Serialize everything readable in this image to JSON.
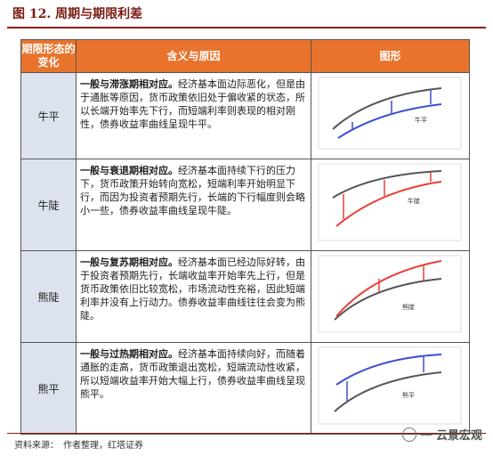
{
  "figure": {
    "title": "图 12. 周期与期限利差"
  },
  "table": {
    "headers": [
      "期限形态的变化",
      "含义与原因",
      "图形"
    ],
    "rows": [
      {
        "type": "牛平",
        "lead": "一般与滞涨期相对应。",
        "text": "经济基本面边际恶化，但是由于通胀等原因，货币政策依旧处于偏收紧的状态，所以长端开始率先下行，而短端利率则表现的相对刚性，债券收益率曲线呈现牛平。",
        "chart_label": "牛平",
        "accent_color": "#3a4fd1"
      },
      {
        "type": "牛陡",
        "lead": "一般与衰退期相对应。",
        "text": "经济基本面持续下行的压力下，货币政策开始转向宽松，短端利率开始明显下行，而因为投资者预期先行，长端的下行幅度则会略小一些，债券收益率曲线呈现牛陡。",
        "chart_label": "牛陡",
        "accent_color": "#e8403a"
      },
      {
        "type": "熊陡",
        "lead": "一般与复苏期相对应。",
        "text": "经济基本面已经边际好转，由于投资者预期先行，长端收益率开始率先上行，但是货币政策依旧比较宽松，市场流动性充裕，因此短端利率并没有上行动力。债券收益率曲线往往会变为熊陡。",
        "chart_label": "熊陡",
        "accent_color": "#e8403a"
      },
      {
        "type": "熊平",
        "lead": "一般与过热期相对应。",
        "text": "经济基本面持续向好，而随着通胀的走高，货币政策退出宽松，短端流动性收紧，所以短端收益率开始大幅上行，债券收益率曲线呈现熊平。",
        "chart_label": "熊平",
        "accent_color": "#3a4fd1"
      }
    ]
  },
  "source": "资料来源：　作者整理，红塔证券",
  "watermark": "一 云景宏观"
}
